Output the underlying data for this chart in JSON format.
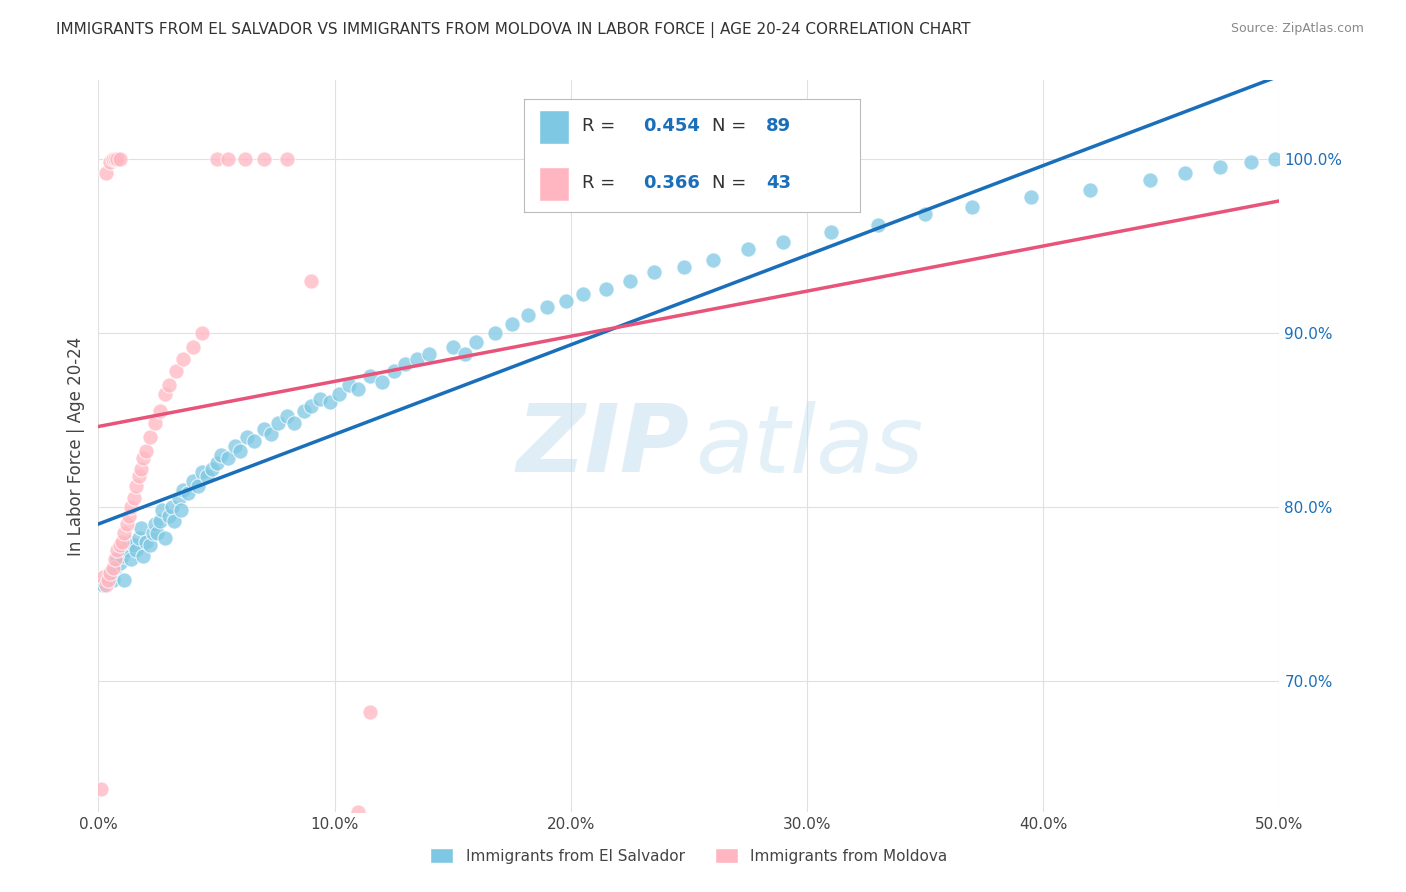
{
  "title": "IMMIGRANTS FROM EL SALVADOR VS IMMIGRANTS FROM MOLDOVA IN LABOR FORCE | AGE 20-24 CORRELATION CHART",
  "source": "Source: ZipAtlas.com",
  "ylabel_label": "In Labor Force | Age 20-24",
  "x_min": 0.0,
  "x_max": 0.5,
  "y_min": 0.625,
  "y_max": 1.045,
  "x_ticks": [
    0.0,
    0.1,
    0.2,
    0.3,
    0.4,
    0.5
  ],
  "x_tick_labels": [
    "0.0%",
    "10.0%",
    "20.0%",
    "30.0%",
    "40.0%",
    "50.0%"
  ],
  "y_ticks": [
    0.7,
    0.8,
    0.9,
    1.0
  ],
  "y_tick_labels": [
    "70.0%",
    "80.0%",
    "90.0%",
    "100.0%"
  ],
  "blue_color": "#7ec8e3",
  "pink_color": "#ffb6c1",
  "blue_line_color": "#1a6fba",
  "pink_line_color": "#e8537a",
  "R_blue": 0.454,
  "N_blue": 89,
  "R_pink": 0.366,
  "N_pink": 43,
  "legend_label_blue": "Immigrants from El Salvador",
  "legend_label_pink": "Immigrants from Moldova",
  "watermark_zip": "ZIP",
  "watermark_atlas": "atlas",
  "blue_scatter_x": [
    0.002,
    0.004,
    0.005,
    0.006,
    0.007,
    0.008,
    0.009,
    0.01,
    0.011,
    0.012,
    0.013,
    0.014,
    0.015,
    0.016,
    0.017,
    0.018,
    0.019,
    0.02,
    0.022,
    0.023,
    0.024,
    0.025,
    0.026,
    0.027,
    0.028,
    0.03,
    0.031,
    0.032,
    0.034,
    0.035,
    0.036,
    0.038,
    0.04,
    0.042,
    0.044,
    0.046,
    0.048,
    0.05,
    0.052,
    0.055,
    0.058,
    0.06,
    0.063,
    0.066,
    0.07,
    0.073,
    0.076,
    0.08,
    0.083,
    0.087,
    0.09,
    0.094,
    0.098,
    0.102,
    0.106,
    0.11,
    0.115,
    0.12,
    0.125,
    0.13,
    0.135,
    0.14,
    0.15,
    0.155,
    0.16,
    0.168,
    0.175,
    0.182,
    0.19,
    0.198,
    0.205,
    0.215,
    0.225,
    0.235,
    0.248,
    0.26,
    0.275,
    0.29,
    0.31,
    0.33,
    0.35,
    0.37,
    0.395,
    0.42,
    0.445,
    0.46,
    0.475,
    0.488,
    0.498
  ],
  "blue_scatter_y": [
    0.755,
    0.76,
    0.762,
    0.758,
    0.765,
    0.77,
    0.768,
    0.772,
    0.758,
    0.775,
    0.78,
    0.77,
    0.778,
    0.775,
    0.782,
    0.788,
    0.772,
    0.78,
    0.778,
    0.785,
    0.79,
    0.785,
    0.792,
    0.798,
    0.782,
    0.795,
    0.8,
    0.792,
    0.805,
    0.798,
    0.81,
    0.808,
    0.815,
    0.812,
    0.82,
    0.818,
    0.822,
    0.825,
    0.83,
    0.828,
    0.835,
    0.832,
    0.84,
    0.838,
    0.845,
    0.842,
    0.848,
    0.852,
    0.848,
    0.855,
    0.858,
    0.862,
    0.86,
    0.865,
    0.87,
    0.868,
    0.875,
    0.872,
    0.878,
    0.882,
    0.885,
    0.888,
    0.892,
    0.888,
    0.895,
    0.9,
    0.905,
    0.91,
    0.915,
    0.918,
    0.922,
    0.925,
    0.93,
    0.935,
    0.938,
    0.942,
    0.948,
    0.952,
    0.958,
    0.962,
    0.968,
    0.972,
    0.978,
    0.982,
    0.988,
    0.992,
    0.995,
    0.998,
    1.0
  ],
  "pink_scatter_x": [
    0.001,
    0.002,
    0.003,
    0.003,
    0.004,
    0.005,
    0.005,
    0.006,
    0.006,
    0.007,
    0.007,
    0.008,
    0.008,
    0.009,
    0.009,
    0.01,
    0.011,
    0.012,
    0.013,
    0.014,
    0.015,
    0.016,
    0.017,
    0.018,
    0.019,
    0.02,
    0.022,
    0.024,
    0.026,
    0.028,
    0.03,
    0.033,
    0.036,
    0.04,
    0.044,
    0.05,
    0.055,
    0.062,
    0.07,
    0.08,
    0.09,
    0.11,
    0.115
  ],
  "pink_scatter_y": [
    0.638,
    0.76,
    0.755,
    0.992,
    0.758,
    0.762,
    0.998,
    0.765,
    1.0,
    0.77,
    1.0,
    0.775,
    1.0,
    0.778,
    1.0,
    0.78,
    0.785,
    0.79,
    0.795,
    0.8,
    0.805,
    0.812,
    0.818,
    0.822,
    0.828,
    0.832,
    0.84,
    0.848,
    0.855,
    0.865,
    0.87,
    0.878,
    0.885,
    0.892,
    0.9,
    1.0,
    1.0,
    1.0,
    1.0,
    1.0,
    0.93,
    0.625,
    0.682
  ]
}
